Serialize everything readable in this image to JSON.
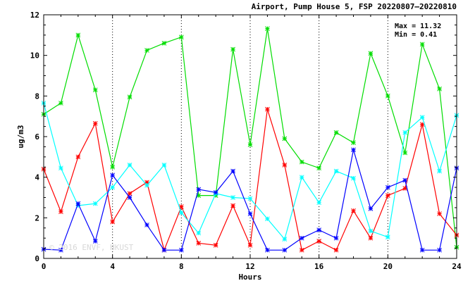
{
  "chart_data": {
    "type": "line",
    "title": "Airport, Pump House 5, FSP 20220807–20220810",
    "xlabel": "Hours",
    "ylabel": "ug/m3",
    "xlim": [
      0,
      24
    ],
    "ylim": [
      0,
      12
    ],
    "xticks": [
      0,
      4,
      8,
      12,
      16,
      20,
      24
    ],
    "yticks": [
      0,
      2,
      4,
      6,
      8,
      10,
      12
    ],
    "grid": "dotted at x ticks",
    "annotations": {
      "max": "Max = 11.32",
      "min": "Min =  0.41"
    },
    "watermark": "© 2016 ENVF, HKUST",
    "x": [
      0,
      1,
      2,
      3,
      4,
      5,
      6,
      7,
      8,
      9,
      10,
      11,
      12,
      13,
      14,
      15,
      16,
      17,
      18,
      19,
      20,
      21,
      22,
      23,
      24
    ],
    "series": [
      {
        "color": "#00dd00",
        "values": [
          7.1,
          7.65,
          11.0,
          8.3,
          4.5,
          7.95,
          10.25,
          10.6,
          10.9,
          3.1,
          3.1,
          10.3,
          5.6,
          11.32,
          5.9,
          4.75,
          4.45,
          6.2,
          5.7,
          10.1,
          8.0,
          5.2,
          10.55,
          8.35,
          0.55
        ]
      },
      {
        "color": "#ff0000",
        "values": [
          4.4,
          2.3,
          5.0,
          6.65,
          1.8,
          3.2,
          3.75,
          0.41,
          2.55,
          0.75,
          0.65,
          2.6,
          0.65,
          7.35,
          4.6,
          0.41,
          0.85,
          0.41,
          2.35,
          1.0,
          3.1,
          3.45,
          6.6,
          2.2,
          1.15
        ]
      },
      {
        "color": "#00ffff",
        "values": [
          7.65,
          4.45,
          2.6,
          2.7,
          3.5,
          4.6,
          3.6,
          4.6,
          2.25,
          1.25,
          3.2,
          3.0,
          2.95,
          1.95,
          0.95,
          4.0,
          2.75,
          4.3,
          3.95,
          1.35,
          1.05,
          6.2,
          6.95,
          4.3,
          7.05
        ]
      },
      {
        "color": "#0000ff",
        "values": [
          0.45,
          0.41,
          2.7,
          0.85,
          4.1,
          3.0,
          1.65,
          0.41,
          0.41,
          3.4,
          3.25,
          4.3,
          2.2,
          0.41,
          0.41,
          1.0,
          1.4,
          1.0,
          5.35,
          2.45,
          3.5,
          3.85,
          0.41,
          0.41,
          4.45
        ]
      }
    ]
  }
}
